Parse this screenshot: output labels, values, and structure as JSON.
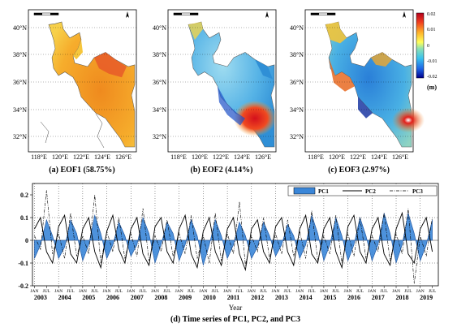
{
  "maps": [
    {
      "id": "a",
      "caption": "(a) EOF1 (58.75%)",
      "lat_labels": [
        "40°N",
        "38°N",
        "36°N",
        "34°N",
        "32°N"
      ],
      "lon_labels": [
        "118°E",
        "120°E",
        "122°E",
        "124°E",
        "126°E"
      ],
      "palette": {
        "sea": "#f29a22",
        "sea_edge": "#f7c13a",
        "coast": "#d9422c",
        "land": "#ffffff"
      }
    },
    {
      "id": "b",
      "caption": "(b) EOF2 (4.14%)",
      "lat_labels": [
        "40°N",
        "38°N",
        "36°N",
        "34°N",
        "32°N"
      ],
      "lon_labels": [
        "118°E",
        "120°E",
        "122°E",
        "124°E",
        "126°E"
      ],
      "palette": {
        "sea": "#5fb8e6",
        "sea_edge": "#8ad0ea",
        "coast": "#e13a26",
        "land": "#ffffff"
      }
    },
    {
      "id": "c",
      "caption": "(c) EOF3 (2.97%)",
      "lat_labels": [
        "40°N",
        "38°N",
        "36°N",
        "34°N",
        "32°N"
      ],
      "lon_labels": [
        "118°E",
        "120°E",
        "122°E",
        "124°E",
        "126°E"
      ],
      "palette": {
        "sea": "#3aa0dc",
        "sea_edge": "#f2b02a",
        "coast": "#e1301f",
        "land": "#ffffff"
      }
    }
  ],
  "colorbar": {
    "ticks": [
      "0.02",
      "0.01",
      "0",
      "-0.01",
      "-0.02"
    ],
    "unit": "(m)",
    "colors": [
      "#b2001d",
      "#f03c1e",
      "#ffb229",
      "#ffff5a",
      "#8ce0b4",
      "#39c2ee",
      "#1e64e6",
      "#00008c"
    ]
  },
  "chart_data": {
    "type": "line",
    "caption": "(d) Time series of PC1, PC2, and PC3",
    "xlabel": "Year",
    "ylabel": "",
    "xlim": [
      2002.917,
      2019.75
    ],
    "ylim": [
      -0.2,
      0.25
    ],
    "yticks": [
      "-0.2",
      "-0.1",
      "0",
      "0.1",
      "0.2"
    ],
    "ytick_values": [
      -0.2,
      -0.1,
      0,
      0.1,
      0.2
    ],
    "month_ticks": [
      "JAN",
      "JUL"
    ],
    "years": [
      "2003",
      "2004",
      "2005",
      "2006",
      "2007",
      "2008",
      "2009",
      "2010",
      "2011",
      "2012",
      "2013",
      "2014",
      "2015",
      "2016",
      "2017",
      "2018",
      "2019"
    ],
    "reference_lines": [
      0.1,
      -0.1
    ],
    "grid": true,
    "legend_position": "top-right",
    "series": [
      {
        "name": "PC1",
        "style": "filled-area",
        "color": "#3a86d8",
        "x": [
          2003.0,
          2003.25,
          2003.5,
          2003.75,
          2004.0,
          2004.25,
          2004.5,
          2004.75,
          2005.0,
          2005.25,
          2005.5,
          2005.75,
          2006.0,
          2006.25,
          2006.5,
          2006.75,
          2007.0,
          2007.25,
          2007.5,
          2007.75,
          2008.0,
          2008.25,
          2008.5,
          2008.75,
          2009.0,
          2009.25,
          2009.5,
          2009.75,
          2010.0,
          2010.25,
          2010.5,
          2010.75,
          2011.0,
          2011.25,
          2011.5,
          2011.75,
          2012.0,
          2012.25,
          2012.5,
          2012.75,
          2013.0,
          2013.25,
          2013.5,
          2013.75,
          2014.0,
          2014.25,
          2014.5,
          2014.75,
          2015.0,
          2015.25,
          2015.5,
          2015.75,
          2016.0,
          2016.25,
          2016.5,
          2016.75,
          2017.0,
          2017.25,
          2017.5,
          2017.75,
          2018.0,
          2018.25,
          2018.5,
          2018.75,
          2019.0,
          2019.25,
          2019.5
        ],
        "y": [
          -0.08,
          -0.02,
          0.09,
          0.02,
          -0.08,
          -0.03,
          0.09,
          0.03,
          -0.09,
          -0.02,
          0.11,
          0.03,
          -0.08,
          -0.02,
          0.08,
          0.02,
          -0.07,
          -0.02,
          0.1,
          0.03,
          -0.1,
          -0.02,
          0.08,
          0.03,
          -0.09,
          -0.02,
          0.09,
          0.02,
          -0.11,
          -0.02,
          0.09,
          0.02,
          -0.08,
          -0.02,
          0.08,
          0.02,
          -0.08,
          -0.03,
          0.08,
          0.02,
          -0.07,
          -0.02,
          0.07,
          0.02,
          -0.08,
          -0.02,
          0.11,
          0.03,
          -0.09,
          -0.02,
          0.1,
          0.02,
          -0.09,
          -0.02,
          0.1,
          0.02,
          -0.09,
          -0.02,
          0.12,
          0.03,
          -0.1,
          -0.02,
          0.12,
          0.03,
          -0.09,
          -0.02,
          0.09
        ]
      },
      {
        "name": "PC2",
        "style": "solid",
        "color": "#000000",
        "x": [
          2003.0,
          2003.25,
          2003.5,
          2003.75,
          2004.0,
          2004.25,
          2004.5,
          2004.75,
          2005.0,
          2005.25,
          2005.5,
          2005.75,
          2006.0,
          2006.25,
          2006.5,
          2006.75,
          2007.0,
          2007.25,
          2007.5,
          2007.75,
          2008.0,
          2008.25,
          2008.5,
          2008.75,
          2009.0,
          2009.25,
          2009.5,
          2009.75,
          2010.0,
          2010.25,
          2010.5,
          2010.75,
          2011.0,
          2011.25,
          2011.5,
          2011.75,
          2012.0,
          2012.25,
          2012.5,
          2012.75,
          2013.0,
          2013.25,
          2013.5,
          2013.75,
          2014.0,
          2014.25,
          2014.5,
          2014.75,
          2015.0,
          2015.25,
          2015.5,
          2015.75,
          2016.0,
          2016.25,
          2016.5,
          2016.75,
          2017.0,
          2017.25,
          2017.5,
          2017.75,
          2018.0,
          2018.25,
          2018.5,
          2018.75,
          2019.0,
          2019.25,
          2019.5
        ],
        "y": [
          0.05,
          0.1,
          -0.05,
          -0.1,
          0.06,
          0.11,
          -0.06,
          -0.1,
          0.05,
          0.1,
          -0.05,
          -0.12,
          0.04,
          0.11,
          -0.04,
          -0.1,
          0.05,
          0.1,
          -0.06,
          -0.11,
          0.06,
          0.1,
          -0.05,
          -0.1,
          0.05,
          0.11,
          -0.06,
          -0.12,
          0.04,
          0.1,
          -0.05,
          -0.11,
          0.05,
          0.1,
          -0.06,
          -0.13,
          0.05,
          0.09,
          -0.05,
          -0.1,
          0.06,
          0.1,
          -0.05,
          -0.11,
          0.05,
          0.11,
          -0.06,
          -0.1,
          0.05,
          0.1,
          -0.05,
          -0.12,
          0.06,
          0.11,
          -0.05,
          -0.1,
          0.05,
          0.1,
          -0.06,
          -0.11,
          0.05,
          0.12,
          -0.06,
          -0.1,
          0.05,
          0.1,
          -0.05
        ]
      },
      {
        "name": "PC3",
        "style": "dash-dot",
        "color": "#000000",
        "x": [
          2003.0,
          2003.25,
          2003.5,
          2003.75,
          2004.0,
          2004.25,
          2004.5,
          2004.75,
          2005.0,
          2005.25,
          2005.5,
          2005.75,
          2006.0,
          2006.25,
          2006.5,
          2006.75,
          2007.0,
          2007.25,
          2007.5,
          2007.75,
          2008.0,
          2008.25,
          2008.5,
          2008.75,
          2009.0,
          2009.25,
          2009.5,
          2009.75,
          2010.0,
          2010.25,
          2010.5,
          2010.75,
          2011.0,
          2011.25,
          2011.5,
          2011.75,
          2012.0,
          2012.25,
          2012.5,
          2012.75,
          2013.0,
          2013.25,
          2013.5,
          2013.75,
          2014.0,
          2014.25,
          2014.5,
          2014.75,
          2015.0,
          2015.25,
          2015.5,
          2015.75,
          2016.0,
          2016.25,
          2016.5,
          2016.75,
          2017.0,
          2017.25,
          2017.5,
          2017.75,
          2018.0,
          2018.25,
          2018.5,
          2018.75,
          2019.0,
          2019.25,
          2019.5
        ],
        "y": [
          0.02,
          -0.04,
          0.22,
          -0.06,
          0.03,
          -0.08,
          0.12,
          -0.07,
          0.02,
          -0.06,
          0.2,
          -0.1,
          0.04,
          -0.05,
          0.1,
          -0.08,
          0.03,
          -0.07,
          0.14,
          -0.09,
          0.02,
          -0.05,
          0.09,
          -0.07,
          0.03,
          -0.06,
          0.11,
          -0.08,
          0.02,
          -0.1,
          0.12,
          -0.09,
          0.03,
          -0.06,
          0.17,
          -0.11,
          0.02,
          -0.05,
          0.1,
          -0.08,
          0.03,
          -0.06,
          0.09,
          -0.07,
          0.04,
          -0.08,
          0.13,
          -0.09,
          0.02,
          -0.06,
          0.11,
          -0.1,
          0.03,
          -0.07,
          0.1,
          -0.08,
          0.02,
          -0.05,
          0.12,
          -0.09,
          0.03,
          -0.06,
          0.14,
          -0.19,
          0.02,
          -0.07,
          0.1
        ]
      }
    ]
  }
}
